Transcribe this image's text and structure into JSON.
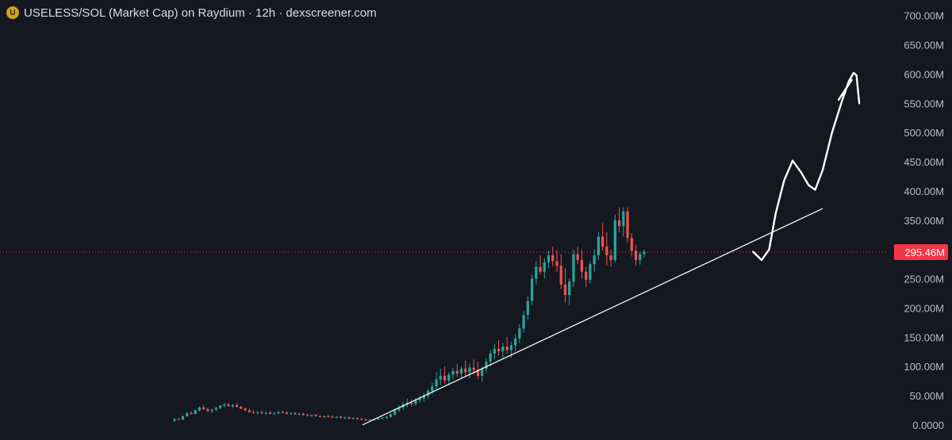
{
  "header": {
    "logo_glyph": "U",
    "title": "USELESS/SOL (Market Cap) on Raydium · 12h · dexscreener.com"
  },
  "colors": {
    "background": "#151821",
    "up": "#26a69a",
    "down": "#ef5350",
    "price_line": "#f23645",
    "annotation": "#ffffff"
  },
  "chart_data": {
    "type": "candlestick",
    "title": "USELESS/SOL (Market Cap) on Raydium · 12h · dexscreener.com",
    "y_unit": "M",
    "ylim": [
      0,
      700
    ],
    "yticks": [
      {
        "value": 700,
        "label": "700.00M"
      },
      {
        "value": 650,
        "label": "650.00M"
      },
      {
        "value": 600,
        "label": "600.00M"
      },
      {
        "value": 550,
        "label": "550.00M"
      },
      {
        "value": 500,
        "label": "500.00M"
      },
      {
        "value": 450,
        "label": "450.00M"
      },
      {
        "value": 400,
        "label": "400.00M"
      },
      {
        "value": 350,
        "label": "350.00M"
      },
      {
        "value": 250,
        "label": "250.00M"
      },
      {
        "value": 200,
        "label": "200.00M"
      },
      {
        "value": 150,
        "label": "150.00M"
      },
      {
        "value": 100,
        "label": "100.00M"
      },
      {
        "value": 50,
        "label": "50.00M"
      },
      {
        "value": 0,
        "label": "0.0000"
      }
    ],
    "last_price": {
      "value": 295.46,
      "label": "295.46M"
    },
    "grid": false,
    "candles": [
      [
        7,
        11,
        5,
        10
      ],
      [
        10,
        12,
        8,
        9
      ],
      [
        9,
        16,
        9,
        15
      ],
      [
        15,
        22,
        14,
        20
      ],
      [
        20,
        24,
        18,
        19
      ],
      [
        19,
        26,
        18,
        25
      ],
      [
        25,
        32,
        23,
        30
      ],
      [
        30,
        34,
        26,
        27
      ],
      [
        27,
        30,
        22,
        24
      ],
      [
        24,
        28,
        20,
        26
      ],
      [
        26,
        31,
        24,
        29
      ],
      [
        29,
        34,
        27,
        33
      ],
      [
        33,
        38,
        30,
        35
      ],
      [
        35,
        38,
        31,
        32
      ],
      [
        32,
        36,
        29,
        34
      ],
      [
        34,
        38,
        30,
        31
      ],
      [
        31,
        33,
        27,
        28
      ],
      [
        28,
        30,
        24,
        25
      ],
      [
        25,
        28,
        21,
        22
      ],
      [
        22,
        25,
        19,
        21
      ],
      [
        21,
        24,
        18,
        22
      ],
      [
        22,
        25,
        19,
        20
      ],
      [
        20,
        23,
        17,
        21
      ],
      [
        21,
        24,
        18,
        19
      ],
      [
        19,
        22,
        17,
        20
      ],
      [
        20,
        24,
        18,
        22
      ],
      [
        22,
        25,
        20,
        21
      ],
      [
        21,
        23,
        18,
        19
      ],
      [
        19,
        22,
        17,
        20
      ],
      [
        20,
        22,
        17,
        18
      ],
      [
        18,
        21,
        16,
        19
      ],
      [
        19,
        21,
        16,
        17
      ],
      [
        17,
        19,
        15,
        16
      ],
      [
        16,
        18,
        14,
        17
      ],
      [
        17,
        19,
        14,
        15
      ],
      [
        15,
        17,
        13,
        14
      ],
      [
        14,
        16,
        12,
        15
      ],
      [
        15,
        17,
        13,
        14
      ],
      [
        14,
        16,
        12,
        13
      ],
      [
        13,
        15,
        11,
        14
      ],
      [
        14,
        15,
        11,
        12
      ],
      [
        12,
        14,
        10,
        13
      ],
      [
        13,
        14,
        10,
        11
      ],
      [
        11,
        13,
        9,
        12
      ],
      [
        12,
        13,
        9,
        10
      ],
      [
        10,
        12,
        8,
        9
      ],
      [
        9,
        11,
        7,
        8
      ],
      [
        8,
        10,
        6,
        9
      ],
      [
        9,
        11,
        7,
        10
      ],
      [
        10,
        12,
        8,
        11
      ],
      [
        11,
        14,
        9,
        12
      ],
      [
        12,
        15,
        10,
        14
      ],
      [
        14,
        20,
        12,
        18
      ],
      [
        18,
        28,
        16,
        25
      ],
      [
        25,
        34,
        22,
        30
      ],
      [
        30,
        40,
        26,
        35
      ],
      [
        35,
        45,
        30,
        38
      ],
      [
        38,
        44,
        32,
        36
      ],
      [
        36,
        46,
        33,
        42
      ],
      [
        42,
        50,
        38,
        45
      ],
      [
        45,
        55,
        40,
        50
      ],
      [
        50,
        62,
        45,
        58
      ],
      [
        58,
        72,
        52,
        66
      ],
      [
        66,
        90,
        60,
        78
      ],
      [
        78,
        96,
        68,
        84
      ],
      [
        84,
        100,
        70,
        76
      ],
      [
        76,
        90,
        68,
        86
      ],
      [
        86,
        98,
        78,
        92
      ],
      [
        92,
        104,
        82,
        88
      ],
      [
        88,
        100,
        80,
        96
      ],
      [
        96,
        110,
        84,
        90
      ],
      [
        90,
        105,
        80,
        98
      ],
      [
        98,
        112,
        86,
        94
      ],
      [
        94,
        108,
        78,
        84
      ],
      [
        84,
        100,
        74,
        96
      ],
      [
        96,
        114,
        90,
        108
      ],
      [
        108,
        128,
        100,
        122
      ],
      [
        122,
        138,
        112,
        130
      ],
      [
        130,
        145,
        118,
        126
      ],
      [
        126,
        140,
        112,
        134
      ],
      [
        134,
        150,
        122,
        128
      ],
      [
        128,
        142,
        115,
        136
      ],
      [
        136,
        155,
        126,
        148
      ],
      [
        148,
        172,
        140,
        165
      ],
      [
        165,
        195,
        158,
        188
      ],
      [
        188,
        220,
        180,
        212
      ],
      [
        212,
        258,
        205,
        250
      ],
      [
        250,
        280,
        240,
        270
      ],
      [
        270,
        290,
        258,
        262
      ],
      [
        262,
        285,
        250,
        278
      ],
      [
        278,
        298,
        268,
        290
      ],
      [
        290,
        305,
        272,
        280
      ],
      [
        280,
        298,
        262,
        272
      ],
      [
        272,
        292,
        232,
        240
      ],
      [
        240,
        268,
        210,
        222
      ],
      [
        222,
        250,
        205,
        245
      ],
      [
        245,
        300,
        236,
        292
      ],
      [
        292,
        305,
        275,
        282
      ],
      [
        282,
        300,
        250,
        262
      ],
      [
        262,
        270,
        236,
        248
      ],
      [
        248,
        280,
        242,
        275
      ],
      [
        275,
        300,
        262,
        290
      ],
      [
        290,
        330,
        282,
        322
      ],
      [
        322,
        345,
        298,
        305
      ],
      [
        305,
        330,
        272,
        290
      ],
      [
        290,
        300,
        270,
        282
      ],
      [
        282,
        360,
        278,
        350
      ],
      [
        350,
        372,
        330,
        340
      ],
      [
        340,
        372,
        322,
        365
      ],
      [
        365,
        372,
        312,
        320
      ],
      [
        320,
        328,
        288,
        298
      ],
      [
        298,
        308,
        272,
        282
      ],
      [
        282,
        296,
        274,
        292
      ],
      [
        292,
        300,
        286,
        296
      ]
    ],
    "support_line": [
      [
        0.4,
        0
      ],
      [
        1.38,
        370
      ]
    ],
    "projection_arrow": [
      [
        1.232,
        296
      ],
      [
        1.25,
        282
      ],
      [
        1.266,
        300
      ],
      [
        1.28,
        362
      ],
      [
        1.298,
        418
      ],
      [
        1.316,
        452
      ],
      [
        1.334,
        432
      ],
      [
        1.35,
        410
      ],
      [
        1.364,
        402
      ],
      [
        1.38,
        436
      ],
      [
        1.4,
        500
      ],
      [
        1.422,
        556
      ],
      [
        1.436,
        588
      ],
      [
        1.446,
        602
      ],
      [
        1.452,
        598
      ],
      [
        1.458,
        550
      ]
    ],
    "arrow_head": [
      [
        1.414,
        556
      ],
      [
        1.442,
        590
      ]
    ]
  }
}
